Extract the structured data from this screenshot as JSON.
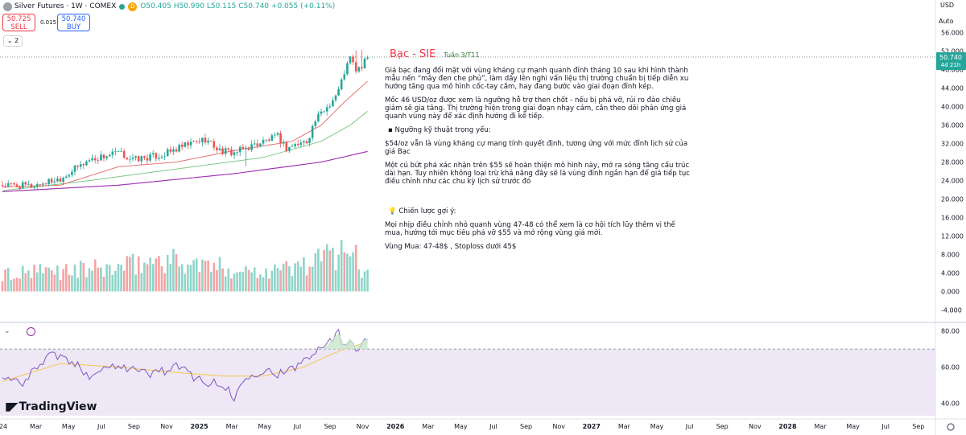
{
  "header": {
    "symbol_title": "Silver Futures · 1W · COMEX",
    "open": "O50.405",
    "high": "H50.990",
    "low": "L50.115",
    "close": "C50.740",
    "change": "+0.055 (+0.11%)",
    "sell_price": "50.725",
    "sell_label": "SELL",
    "spread": "0.015",
    "buy_price": "50.740",
    "buy_label": "BUY",
    "indicators_count": "2",
    "currency": "USD",
    "scale_mode": "Auto",
    "d_badge": "D"
  },
  "brand": "TradingView",
  "annotation": {
    "title": "Bạc - SIE",
    "week": "Tuần 3/T11",
    "p1": "Giá bạc đang đối mặt với vùng kháng cự mạnh quanh đỉnh tháng 10 sau khi hình thành mẫu nến “mây đen che phủ”, làm dấy lên nghi vấn liệu thị trường chuẩn bị tiếp diễn xu hướng tăng qua mô hình cốc-tay cầm, hay đang bước vào giai đoạn đỉnh kép.",
    "p2": "Mốc 46 USD/oz được xem là ngưỡng hỗ trợ then chốt - nếu bị phá vỡ, rủi ro đảo chiều giảm sẽ gia tăng. Thị trường hiện trong giai đoạn nhạy cảm, cần theo dõi phản ứng giá quanh vùng này để xác định hướng đi kế tiếp.",
    "p3": "▪ Ngưỡng kỹ thuật trọng yếu:",
    "p4": "$54/oz vẫn là vùng kháng cự mang tính quyết định, tương ứng với mức đỉnh lịch sử của giá Bạc",
    "p5": "Một cú bứt phá xác nhận trên $55 sẽ hoàn thiện mô hình này, mở ra sóng tăng cấu trúc dài hạn. Tuy nhiên không loại trừ khả năng đây sẽ là vùng đỉnh ngắn hạn để giá tiếp tục điều chỉnh như các chu kỳ lịch sử trước đó",
    "p6": "💡 Chiến lược gợi ý:",
    "p7": "Mọi nhịp điều chỉnh nhỏ quanh vùng 47-48 có thể xem là cơ hội tích lũy thêm vị thế mua, hướng tới mục tiêu phá vỡ $55 và mở rộng vùng giá mới.",
    "p8": "Vùng Mua: 47-48$ , Stoploss dưới 45$"
  },
  "chart_data": {
    "type": "line",
    "price_axis": {
      "ticks": [
        "56.000",
        "52.000",
        "48.000",
        "44.000",
        "40.000",
        "36.000",
        "32.000",
        "28.000",
        "24.000",
        "20.000",
        "16.000",
        "12.000",
        "8.000",
        "4.000",
        "0.000",
        "-4.000"
      ],
      "ylim": [
        -5.5,
        57
      ],
      "last_price": "50.740",
      "countdown": "4d 21h"
    },
    "rsi_axis": {
      "ticks": [
        "80.00",
        "60.00",
        "40.00"
      ],
      "ylim": [
        33,
        83
      ],
      "upper_band": 70,
      "lower_band": 30
    },
    "x_axis": {
      "labels": [
        "24",
        "Mar",
        "May",
        "Jul",
        "Sep",
        "Nov",
        "2025",
        "Mar",
        "May",
        "Jul",
        "Sep",
        "Nov",
        "2026",
        "Mar",
        "May",
        "Jul",
        "Sep",
        "Nov",
        "2027",
        "Mar",
        "May",
        "Jul",
        "Sep",
        "Nov",
        "2028",
        "Mar",
        "May",
        "Jul",
        "Sep"
      ],
      "bold": [
        "2025",
        "2026",
        "2027",
        "2028"
      ]
    },
    "candles_anchor": [
      [
        0,
        23.0
      ],
      [
        10,
        22.8
      ],
      [
        20,
        24.5
      ],
      [
        30,
        28.5
      ],
      [
        40,
        30.0
      ],
      [
        45,
        28.5
      ],
      [
        55,
        29.5
      ],
      [
        65,
        32.0
      ],
      [
        70,
        33.0
      ],
      [
        75,
        30.5
      ],
      [
        80,
        30.0
      ],
      [
        88,
        32.0
      ],
      [
        95,
        33.5
      ],
      [
        98,
        31.0
      ],
      [
        100,
        31.5
      ],
      [
        105,
        32.5
      ],
      [
        108,
        37.0
      ],
      [
        112,
        40.0
      ],
      [
        114,
        41.5
      ],
      [
        116,
        43.5
      ],
      [
        118,
        47.5
      ],
      [
        120,
        50.5
      ],
      [
        122,
        48.0
      ],
      [
        124,
        48.5
      ],
      [
        126,
        50.7
      ]
    ],
    "ma_red_anchor": [
      [
        0,
        22.6
      ],
      [
        20,
        23.0
      ],
      [
        40,
        27.0
      ],
      [
        60,
        28.0
      ],
      [
        80,
        30.5
      ],
      [
        100,
        32.5
      ],
      [
        110,
        36.0
      ],
      [
        118,
        41.0
      ],
      [
        126,
        45.5
      ]
    ],
    "ma_green_anchor": [
      [
        0,
        21.8
      ],
      [
        30,
        24.0
      ],
      [
        60,
        26.5
      ],
      [
        90,
        29.0
      ],
      [
        110,
        32.5
      ],
      [
        120,
        36.0
      ],
      [
        126,
        39.0
      ]
    ],
    "ma_purple_anchor": [
      [
        0,
        21.6
      ],
      [
        40,
        23.0
      ],
      [
        80,
        25.5
      ],
      [
        110,
        28.0
      ],
      [
        126,
        30.3
      ]
    ],
    "volume_anchor": [
      [
        0,
        3.5
      ],
      [
        20,
        4.5
      ],
      [
        40,
        5.0
      ],
      [
        55,
        7.0
      ],
      [
        70,
        5.5
      ],
      [
        85,
        4.5
      ],
      [
        100,
        5.0
      ],
      [
        110,
        7.0
      ],
      [
        116,
        8.5
      ],
      [
        120,
        11.5
      ],
      [
        122,
        7.0
      ],
      [
        124,
        3.0
      ],
      [
        126,
        6.0
      ]
    ],
    "rsi_anchor": [
      [
        0,
        54
      ],
      [
        8,
        52
      ],
      [
        16,
        68
      ],
      [
        22,
        64
      ],
      [
        30,
        56
      ],
      [
        40,
        62
      ],
      [
        50,
        56
      ],
      [
        60,
        60
      ],
      [
        70,
        52
      ],
      [
        78,
        48
      ],
      [
        80,
        42
      ],
      [
        84,
        56
      ],
      [
        90,
        58
      ],
      [
        98,
        56
      ],
      [
        104,
        64
      ],
      [
        108,
        70
      ],
      [
        112,
        74
      ],
      [
        116,
        79
      ],
      [
        118,
        70
      ],
      [
        120,
        76
      ],
      [
        122,
        71
      ],
      [
        124,
        74
      ],
      [
        126,
        76
      ]
    ],
    "rsi_ma_anchor": [
      [
        0,
        52
      ],
      [
        20,
        62
      ],
      [
        40,
        60
      ],
      [
        60,
        57
      ],
      [
        76,
        55
      ],
      [
        90,
        55
      ],
      [
        104,
        60
      ],
      [
        112,
        66
      ],
      [
        118,
        70
      ],
      [
        126,
        74
      ]
    ],
    "n_candles": 127
  }
}
